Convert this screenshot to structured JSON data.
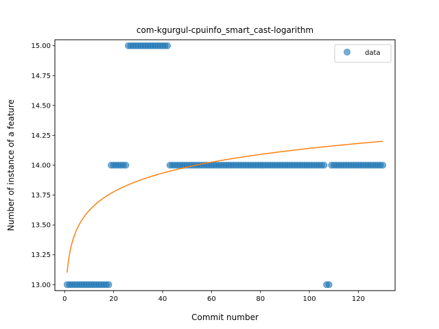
{
  "chart_data": {
    "type": "scatter",
    "title": "com-kgurgul-cpuinfo_smart_cast-logarithm",
    "xlabel": "Commit number",
    "ylabel": "Number of instance of a feature",
    "xlim": [
      -4,
      135
    ],
    "ylim": [
      12.95,
      15.05
    ],
    "xticks": [
      0,
      20,
      40,
      60,
      80,
      100,
      120
    ],
    "yticks": [
      13.0,
      13.25,
      13.5,
      13.75,
      14.0,
      14.25,
      14.5,
      14.75,
      15.0
    ],
    "ytick_labels": [
      "13.00",
      "13.25",
      "13.50",
      "13.75",
      "14.00",
      "14.25",
      "14.50",
      "14.75",
      "15.00"
    ],
    "legend": {
      "position": "top-right",
      "entries": [
        "data"
      ]
    },
    "colors": {
      "data": "#1f77b4",
      "fit": "#ff7f0e"
    },
    "series": [
      {
        "name": "data",
        "kind": "scatter",
        "runs": [
          {
            "x_start": 1,
            "x_end": 18,
            "y": 13.0
          },
          {
            "x_start": 19,
            "x_end": 25,
            "y": 14.0
          },
          {
            "x_start": 26,
            "x_end": 42,
            "y": 15.0
          },
          {
            "x_start": 43,
            "x_end": 106,
            "y": 14.0
          },
          {
            "x_start": 107,
            "x_end": 108,
            "y": 13.0
          },
          {
            "x_start": 109,
            "x_end": 130,
            "y": 14.0
          }
        ]
      },
      {
        "kind": "line",
        "model": "logarithmic",
        "x_range": [
          1,
          130
        ],
        "y_at_start": 13.1,
        "y_at_end": 14.2
      }
    ]
  }
}
